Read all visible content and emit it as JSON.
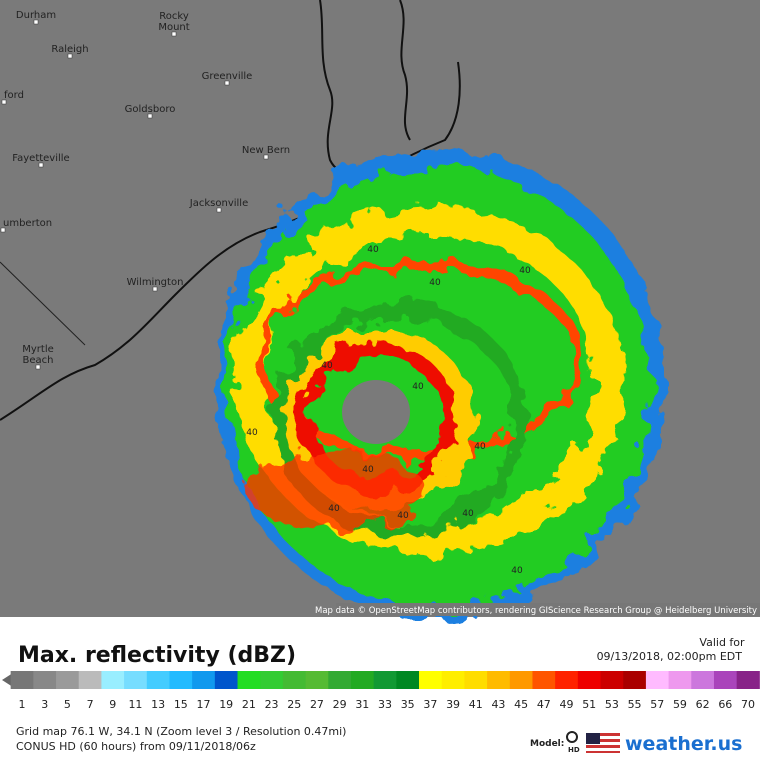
{
  "map": {
    "cities": [
      [
        "Durham"
      ],
      [
        "Rocky",
        "Mount"
      ],
      [
        "Raleigh"
      ],
      [
        "ford"
      ],
      [
        "Greenville"
      ],
      [
        "Goldsboro"
      ],
      [
        "Fayetteville"
      ],
      [
        "New Bern"
      ],
      [
        "Jacksonville"
      ],
      [
        "umberton"
      ],
      [
        "Wilmington"
      ],
      [
        "Myrtle",
        "Beach"
      ]
    ],
    "contour_labels": [
      "40",
      "40",
      "40",
      "40",
      "40",
      "40",
      "40",
      "40",
      "40",
      "40",
      "40",
      "40"
    ],
    "attribution": "Map data © OpenStreetMap contributors, rendering GIScience Research Group @ Heidelberg University"
  },
  "legend": {
    "title": "Max. reflectivity (dBZ)",
    "valid_label": "Valid for",
    "valid_time": "09/13/2018, 02:00pm EDT",
    "scale": [
      {
        "label": "1",
        "color": "#777777"
      },
      {
        "label": "3",
        "color": "#888888"
      },
      {
        "label": "5",
        "color": "#9a9a9a"
      },
      {
        "label": "7",
        "color": "#bbbbbb"
      },
      {
        "label": "9",
        "color": "#99eeff"
      },
      {
        "label": "11",
        "color": "#77ddff"
      },
      {
        "label": "13",
        "color": "#44ccff"
      },
      {
        "label": "15",
        "color": "#22bbff"
      },
      {
        "label": "17",
        "color": "#1199ee"
      },
      {
        "label": "19",
        "color": "#0055cc"
      },
      {
        "label": "21",
        "color": "#22dd22"
      },
      {
        "label": "23",
        "color": "#33cc33"
      },
      {
        "label": "25",
        "color": "#44bb33"
      },
      {
        "label": "27",
        "color": "#55bb33"
      },
      {
        "label": "29",
        "color": "#33aa33"
      },
      {
        "label": "31",
        "color": "#22aa22"
      },
      {
        "label": "33",
        "color": "#119933"
      },
      {
        "label": "35",
        "color": "#008822"
      },
      {
        "label": "37",
        "color": "#ffff00"
      },
      {
        "label": "39",
        "color": "#ffee00"
      },
      {
        "label": "41",
        "color": "#ffdd00"
      },
      {
        "label": "43",
        "color": "#ffbb00"
      },
      {
        "label": "45",
        "color": "#ff9900"
      },
      {
        "label": "47",
        "color": "#ff5500"
      },
      {
        "label": "49",
        "color": "#ff2200"
      },
      {
        "label": "51",
        "color": "#ee0000"
      },
      {
        "label": "53",
        "color": "#cc0000"
      },
      {
        "label": "55",
        "color": "#aa0000"
      },
      {
        "label": "57",
        "color": "#ffbbff"
      },
      {
        "label": "59",
        "color": "#ee99ee"
      },
      {
        "label": "62",
        "color": "#cc77dd"
      },
      {
        "label": "66",
        "color": "#aa44bb"
      },
      {
        "label": "70",
        "color": "#882288"
      }
    ]
  },
  "footer": {
    "grid": "Grid map 76.1 W, 34.1 N (Zoom level 3 / Resolution 0.47mi)",
    "model_run": "CONUS HD (60 hours) from 09/11/2018/06z",
    "model_label": "Model:",
    "model_icon": "HD",
    "brand": "weather.us"
  }
}
